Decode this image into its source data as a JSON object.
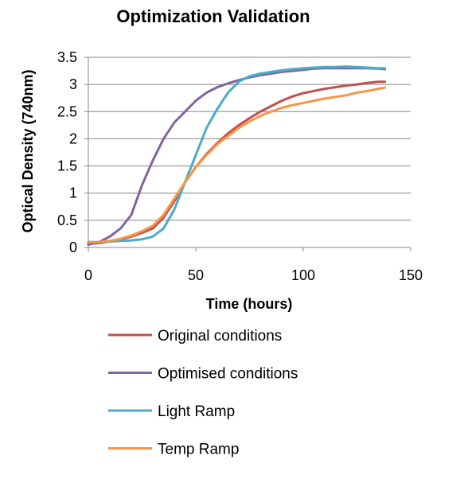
{
  "chart_data": {
    "type": "line",
    "title": "Optimization Validation",
    "xlabel": "Time (hours)",
    "ylabel": "Optical Density (740nm)",
    "xlim": [
      0,
      150
    ],
    "ylim": [
      0,
      3.5
    ],
    "xticks": [
      0,
      50,
      100,
      150
    ],
    "xtick_labels": [
      "0",
      "50",
      "100",
      "150"
    ],
    "yticks": [
      0,
      0.5,
      1,
      1.5,
      2,
      2.5,
      3,
      3.5
    ],
    "ytick_labels": [
      "0",
      "0.5",
      "1",
      "1.5",
      "2",
      "2.5",
      "3",
      "3.5"
    ],
    "grid": "horizontal",
    "legend_position": "bottom",
    "series": [
      {
        "name": "Original conditions",
        "color": "#C0504D",
        "x": [
          0,
          5,
          10,
          15,
          20,
          25,
          30,
          35,
          40,
          45,
          50,
          55,
          60,
          65,
          70,
          75,
          80,
          85,
          90,
          95,
          100,
          105,
          110,
          115,
          120,
          125,
          130,
          135,
          138
        ],
        "y": [
          0.07,
          0.08,
          0.11,
          0.15,
          0.2,
          0.27,
          0.35,
          0.55,
          0.85,
          1.2,
          1.48,
          1.72,
          1.92,
          2.1,
          2.25,
          2.38,
          2.5,
          2.6,
          2.7,
          2.78,
          2.84,
          2.88,
          2.92,
          2.95,
          2.98,
          3.0,
          3.03,
          3.05,
          3.05
        ]
      },
      {
        "name": "Optimised conditions",
        "color": "#8064A2",
        "x": [
          0,
          5,
          10,
          15,
          20,
          25,
          30,
          35,
          40,
          45,
          50,
          55,
          60,
          65,
          70,
          75,
          80,
          85,
          90,
          95,
          100,
          105,
          110,
          115,
          120,
          125,
          130,
          135,
          138
        ],
        "y": [
          0.05,
          0.1,
          0.2,
          0.35,
          0.6,
          1.15,
          1.6,
          2.0,
          2.3,
          2.5,
          2.7,
          2.85,
          2.95,
          3.02,
          3.08,
          3.13,
          3.17,
          3.2,
          3.23,
          3.25,
          3.27,
          3.29,
          3.3,
          3.3,
          3.3,
          3.3,
          3.3,
          3.29,
          3.28
        ]
      },
      {
        "name": "Light Ramp",
        "color": "#4BACC6",
        "x": [
          0,
          5,
          10,
          15,
          20,
          25,
          30,
          35,
          40,
          45,
          50,
          55,
          60,
          65,
          70,
          75,
          80,
          85,
          90,
          95,
          100,
          105,
          110,
          115,
          120,
          125,
          130,
          135,
          138
        ],
        "y": [
          0.1,
          0.1,
          0.11,
          0.12,
          0.13,
          0.15,
          0.2,
          0.35,
          0.7,
          1.2,
          1.7,
          2.2,
          2.55,
          2.85,
          3.05,
          3.15,
          3.2,
          3.23,
          3.26,
          3.28,
          3.3,
          3.31,
          3.32,
          3.32,
          3.33,
          3.32,
          3.31,
          3.3,
          3.3
        ]
      },
      {
        "name": "Temp Ramp",
        "color": "#F79646",
        "x": [
          0,
          5,
          10,
          15,
          20,
          25,
          30,
          35,
          40,
          45,
          50,
          55,
          60,
          65,
          70,
          75,
          80,
          85,
          90,
          95,
          100,
          105,
          110,
          115,
          120,
          125,
          130,
          135,
          138
        ],
        "y": [
          0.1,
          0.1,
          0.12,
          0.16,
          0.22,
          0.3,
          0.4,
          0.6,
          0.9,
          1.2,
          1.48,
          1.7,
          1.9,
          2.05,
          2.2,
          2.32,
          2.42,
          2.5,
          2.57,
          2.62,
          2.66,
          2.7,
          2.74,
          2.77,
          2.8,
          2.85,
          2.88,
          2.92,
          2.94
        ]
      }
    ]
  },
  "colors": {
    "axis": "#868686",
    "grid": "#868686"
  }
}
